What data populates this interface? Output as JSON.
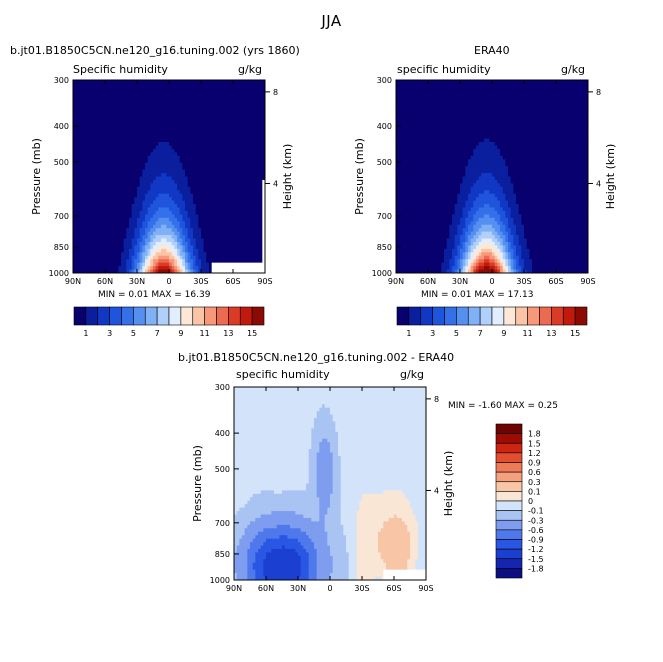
{
  "page_title": "JJA",
  "chart_data": [
    {
      "id": "model",
      "type": "contour",
      "title": "b.jt01.B1850C5CN.ne120_g16.tuning.002 (yrs 1860)",
      "left_label": "Specific humidity",
      "units": "g/kg",
      "ylabel": "Pressure (mb)",
      "ylabel_right": "Height (km)",
      "x_ticks": [
        "90N",
        "60N",
        "30N",
        "0",
        "30S",
        "60S",
        "90S"
      ],
      "x_values": [
        90,
        60,
        30,
        0,
        -30,
        -60,
        -90
      ],
      "y_ticks": [
        "300",
        "400",
        "500",
        "700",
        "850",
        "1000"
      ],
      "y_values": [
        300,
        400,
        500,
        700,
        850,
        1000
      ],
      "height_ticks": [
        "8",
        "4"
      ],
      "height_values": [
        8,
        4
      ],
      "stats_text": "MIN =     0.01  MAX =   16.39",
      "min": 0.01,
      "max": 16.39,
      "levels": [
        1,
        2,
        3,
        4,
        5,
        6,
        7,
        8,
        9,
        10,
        11,
        12,
        13,
        14,
        15
      ],
      "colorbar_labels": [
        "1",
        "3",
        "5",
        "7",
        "9",
        "11",
        "13",
        "15"
      ],
      "peak_lat": 5
    },
    {
      "id": "obs",
      "type": "contour",
      "title": "ERA40",
      "left_label": "specific humidity",
      "units": "g/kg",
      "ylabel": "Pressure (mb)",
      "ylabel_right": "Height (km)",
      "x_ticks": [
        "90N",
        "60N",
        "30N",
        "0",
        "30S",
        "60S",
        "90S"
      ],
      "x_values": [
        90,
        60,
        30,
        0,
        -30,
        -60,
        -90
      ],
      "y_ticks": [
        "300",
        "400",
        "500",
        "700",
        "850",
        "1000"
      ],
      "y_values": [
        300,
        400,
        500,
        700,
        850,
        1000
      ],
      "height_ticks": [
        "8",
        "4"
      ],
      "height_values": [
        8,
        4
      ],
      "stats_text": "MIN =     0.01  MAX =   17.13",
      "min": 0.01,
      "max": 17.13,
      "levels": [
        1,
        2,
        3,
        4,
        5,
        6,
        7,
        8,
        9,
        10,
        11,
        12,
        13,
        14,
        15
      ],
      "colorbar_labels": [
        "1",
        "3",
        "5",
        "7",
        "9",
        "11",
        "13",
        "15"
      ],
      "peak_lat": 5
    },
    {
      "id": "diff",
      "type": "contour",
      "title": "b.jt01.B1850C5CN.ne120_g16.tuning.002 - ERA40",
      "left_label": "specific humidity",
      "units": "g/kg",
      "ylabel": "Pressure (mb)",
      "ylabel_right": "Height (km)",
      "x_ticks": [
        "90N",
        "60N",
        "30N",
        "0",
        "30S",
        "60S",
        "90S"
      ],
      "x_values": [
        90,
        60,
        30,
        0,
        -30,
        -60,
        -90
      ],
      "y_ticks": [
        "300",
        "400",
        "500",
        "700",
        "850",
        "1000"
      ],
      "y_values": [
        300,
        400,
        500,
        700,
        850,
        1000
      ],
      "height_ticks": [
        "8",
        "4"
      ],
      "height_values": [
        8,
        4
      ],
      "stats_text": "MIN =   -1.60  MAX =    0.25",
      "min": -1.6,
      "max": 0.25,
      "levels": [
        -1.8,
        -1.5,
        -1.2,
        -0.9,
        -0.6,
        -0.3,
        -0.1,
        0,
        0.1,
        0.3,
        0.6,
        0.9,
        1.2,
        1.5,
        1.8
      ],
      "colorbar_labels": [
        "1.8",
        "1.5",
        "1.2",
        "0.9",
        "0.6",
        "0.3",
        "0.1",
        "0",
        "-0.1",
        "-0.3",
        "-0.6",
        "-0.9",
        "-1.2",
        "-1.5",
        "-1.8"
      ]
    }
  ],
  "palettes": {
    "sequential": [
      "#08006e",
      "#0a1f9e",
      "#1038c4",
      "#1f55dc",
      "#3470ea",
      "#5590f0",
      "#80b1f6",
      "#b0d0fb",
      "#e1eefd",
      "#fde8d8",
      "#fbc4a6",
      "#f7987a",
      "#ec6a4f",
      "#db3b25",
      "#c11a0c",
      "#8d0a04"
    ],
    "diverging": [
      "#0c0f82",
      "#1426b0",
      "#1b3fd0",
      "#2a56e4",
      "#4f78ec",
      "#7e9def",
      "#a9c3f3",
      "#d3e4fa",
      "#fae6d5",
      "#f8c5a6",
      "#f5a07e",
      "#ef7a58",
      "#e24f30",
      "#cc2612",
      "#9c0b04",
      "#6e0402"
    ],
    "missing": "#ffffff"
  }
}
